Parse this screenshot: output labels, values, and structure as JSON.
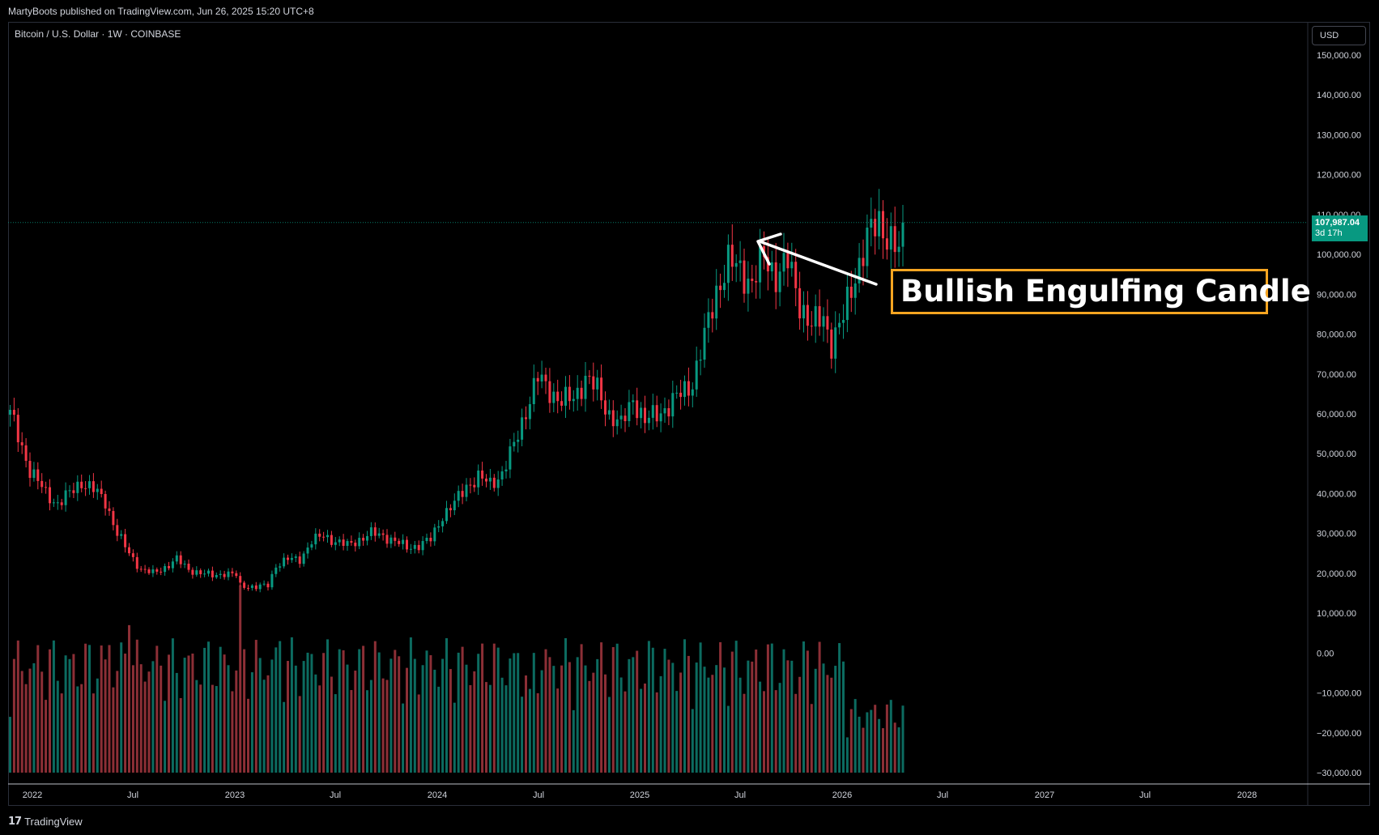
{
  "attribution": "MartyBoots published on TradingView.com, Jun 26, 2025 15:20 UTC+8",
  "symbol_title": "Bitcoin / U.S. Dollar · 1W · COINBASE",
  "currency": "USD",
  "last_price": "107,987.04",
  "countdown": "3d 17h",
  "annotation": "Bullish Engulfing Candle",
  "brand": "TradingView",
  "brand_mark": "17",
  "colors": {
    "up": "#089981",
    "down": "#f23645",
    "up_volume": "#0c6b60",
    "down_volume": "#8c2f36",
    "annotation_border": "#f7a521",
    "background": "#000000"
  },
  "chart_data": {
    "type": "candlestick",
    "interval": "1W",
    "ylim": [
      -30000,
      150000
    ],
    "y_ticks": [
      "150,000.00",
      "140,000.00",
      "130,000.00",
      "120,000.00",
      "110,000.00",
      "100,000.00",
      "90,000.00",
      "80,000.00",
      "70,000.00",
      "60,000.00",
      "50,000.00",
      "40,000.00",
      "30,000.00",
      "20,000.00",
      "10,000.00",
      "0.00",
      "−10,000.00",
      "−20,000.00",
      "−30,000.00"
    ],
    "x_ticks": [
      "2022",
      "Jul",
      "2023",
      "Jul",
      "2024",
      "Jul",
      "2025",
      "Jul",
      "2026",
      "Jul",
      "2027",
      "Jul",
      "2028"
    ],
    "anchors": [
      [
        0,
        60000
      ],
      [
        5,
        46000
      ],
      [
        9,
        40000
      ],
      [
        12,
        37500
      ],
      [
        15,
        40000
      ],
      [
        18,
        43000
      ],
      [
        21,
        41000
      ],
      [
        24,
        38000
      ],
      [
        27,
        30000
      ],
      [
        30,
        25000
      ],
      [
        33,
        21000
      ],
      [
        36,
        20000
      ],
      [
        39,
        21500
      ],
      [
        42,
        23500
      ],
      [
        45,
        21000
      ],
      [
        48,
        20000
      ],
      [
        51,
        19500
      ],
      [
        54,
        20000
      ],
      [
        57,
        19500
      ],
      [
        58,
        17000
      ],
      [
        60,
        16800
      ],
      [
        62,
        16500
      ],
      [
        65,
        17000
      ],
      [
        67,
        22000
      ],
      [
        70,
        23500
      ],
      [
        73,
        23500
      ],
      [
        76,
        28000
      ],
      [
        79,
        29500
      ],
      [
        82,
        28000
      ],
      [
        85,
        27000
      ],
      [
        88,
        28500
      ],
      [
        91,
        30000
      ],
      [
        94,
        29500
      ],
      [
        97,
        28000
      ],
      [
        100,
        26500
      ],
      [
        103,
        27000
      ],
      [
        106,
        28500
      ],
      [
        109,
        34500
      ],
      [
        112,
        37500
      ],
      [
        115,
        42000
      ],
      [
        118,
        44000
      ],
      [
        121,
        42500
      ],
      [
        124,
        45000
      ],
      [
        127,
        52000
      ],
      [
        130,
        61000
      ],
      [
        133,
        69000
      ],
      [
        136,
        66000
      ],
      [
        139,
        63000
      ],
      [
        142,
        64000
      ],
      [
        145,
        69000
      ],
      [
        148,
        66000
      ],
      [
        151,
        60000
      ],
      [
        154,
        57000
      ],
      [
        157,
        64000
      ],
      [
        160,
        58000
      ],
      [
        163,
        60000
      ],
      [
        166,
        62000
      ],
      [
        169,
        65000
      ],
      [
        172,
        68000
      ],
      [
        175,
        79000
      ],
      [
        178,
        91000
      ],
      [
        181,
        98000
      ],
      [
        184,
        96000
      ],
      [
        187,
        93000
      ],
      [
        190,
        99000
      ],
      [
        193,
        95000
      ],
      [
        196,
        98000
      ],
      [
        199,
        88000
      ],
      [
        202,
        82000
      ],
      [
        205,
        84000
      ],
      [
        207,
        78000
      ],
      [
        210,
        84000
      ],
      [
        213,
        95000
      ],
      [
        216,
        104000
      ],
      [
        219,
        108000
      ],
      [
        222,
        104000
      ],
      [
        224,
        100000
      ],
      [
        225,
        108000
      ]
    ],
    "volume_spikes": [
      [
        25,
        32000
      ],
      [
        30,
        37000
      ],
      [
        58,
        47000
      ],
      [
        68,
        33000
      ],
      [
        121,
        22000
      ],
      [
        131,
        21000
      ]
    ]
  }
}
